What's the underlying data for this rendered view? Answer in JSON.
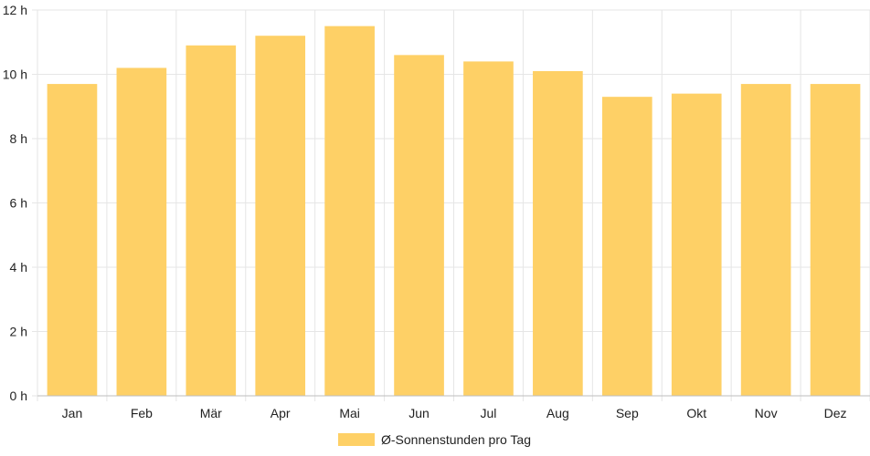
{
  "chart_data": {
    "type": "bar",
    "title": "",
    "xlabel": "",
    "ylabel": "",
    "categories": [
      "Jan",
      "Feb",
      "Mär",
      "Apr",
      "Mai",
      "Jun",
      "Jul",
      "Aug",
      "Sep",
      "Okt",
      "Nov",
      "Dez"
    ],
    "series": [
      {
        "name": "Ø-Sonnenstunden pro Tag",
        "values": [
          9.7,
          10.2,
          10.9,
          11.2,
          11.5,
          10.6,
          10.4,
          10.1,
          9.3,
          9.4,
          9.7,
          9.7
        ],
        "color": "#fed066"
      }
    ],
    "ylim": [
      0,
      12
    ],
    "yticks": [
      0,
      2,
      4,
      6,
      8,
      10,
      12
    ],
    "ytick_labels": [
      "0 h",
      "2 h",
      "4 h",
      "6 h",
      "8 h",
      "10 h",
      "12 h"
    ],
    "grid": true,
    "legend_position": "bottom-center",
    "colors": {
      "grid": "#e6e6e6",
      "axis": "#bdbdbd",
      "text": "#222222"
    }
  }
}
